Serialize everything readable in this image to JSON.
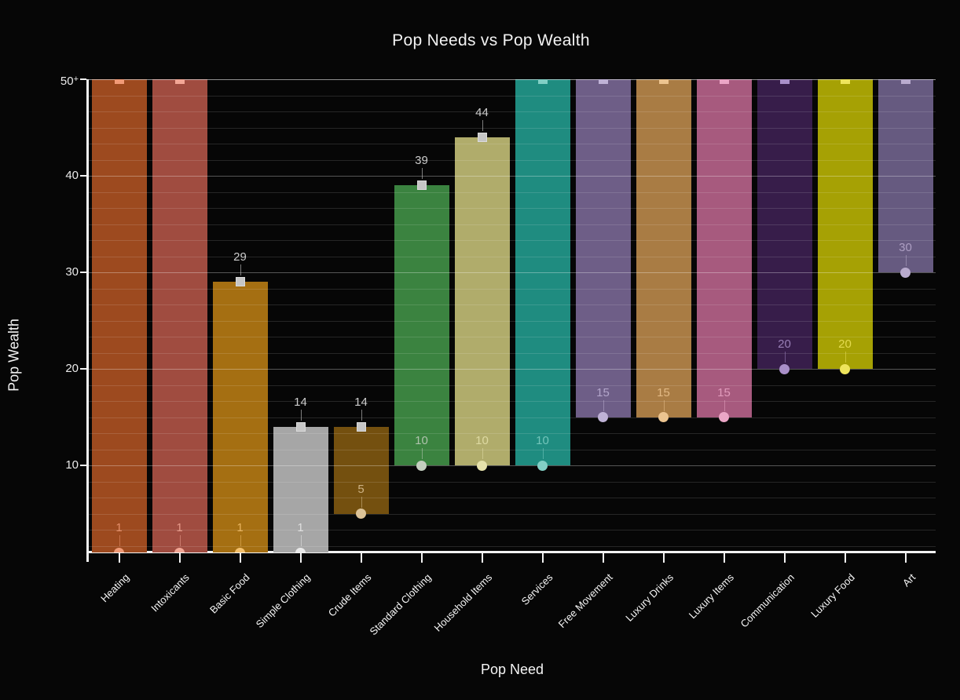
{
  "chart_data": {
    "type": "bar",
    "subtype": "floating-range-bar",
    "title": "Pop Needs vs Pop Wealth",
    "xlabel": "Pop Need",
    "ylabel": "Pop Wealth",
    "ylim": [
      1,
      50
    ],
    "grid": "on",
    "legend": "none",
    "y_major_ticks": [
      {
        "value": 10,
        "label": "10"
      },
      {
        "value": 20,
        "label": "20"
      },
      {
        "value": 30,
        "label": "30"
      },
      {
        "value": 40,
        "label": "40"
      },
      {
        "value": 50,
        "label": "50+"
      }
    ],
    "y_minor_divisions_per_major": 6,
    "categories": [
      "Heating",
      "Intoxicants",
      "Basic Food",
      "Simple Clothing",
      "Crude Items",
      "Standard Clothing",
      "Household Items",
      "Services",
      "Free Movement",
      "Luxury Drinks",
      "Luxury Items",
      "Communication",
      "Luxury Food",
      "Art"
    ],
    "series": [
      {
        "name": "Heating",
        "low": 1,
        "high": 50,
        "high_capped": true,
        "bar_color": "#9d4a1f",
        "tint_color": "#f09a76"
      },
      {
        "name": "Intoxicants",
        "low": 1,
        "high": 50,
        "high_capped": true,
        "bar_color": "#a04c40",
        "tint_color": "#f2a695"
      },
      {
        "name": "Basic Food",
        "low": 1,
        "high": 29,
        "high_capped": false,
        "bar_color": "#a56f12",
        "tint_color": "#f4c06c"
      },
      {
        "name": "Simple Clothing",
        "low": 1,
        "high": 14,
        "high_capped": false,
        "bar_color": "#a6a6a6",
        "tint_color": "#e9e9e9"
      },
      {
        "name": "Crude Items",
        "low": 5,
        "high": 14,
        "high_capped": false,
        "bar_color": "#74500f",
        "tint_color": "#dcc398"
      },
      {
        "name": "Standard Clothing",
        "low": 10,
        "high": 39,
        "high_capped": false,
        "bar_color": "#3b8340",
        "tint_color": "#c4cfc0"
      },
      {
        "name": "Household Items",
        "low": 10,
        "high": 44,
        "high_capped": false,
        "bar_color": "#b0ac6b",
        "tint_color": "#e6e2ab"
      },
      {
        "name": "Services",
        "low": 10,
        "high": 50,
        "high_capped": true,
        "bar_color": "#1f8c80",
        "tint_color": "#82cfc5"
      },
      {
        "name": "Free Movement",
        "low": 15,
        "high": 50,
        "high_capped": true,
        "bar_color": "#6e5e87",
        "tint_color": "#bfb2d6"
      },
      {
        "name": "Luxury Drinks",
        "low": 15,
        "high": 50,
        "high_capped": true,
        "bar_color": "#a97c44",
        "tint_color": "#ecc490"
      },
      {
        "name": "Luxury Items",
        "low": 15,
        "high": 50,
        "high_capped": true,
        "bar_color": "#a75a7e",
        "tint_color": "#eba6c6"
      },
      {
        "name": "Communication",
        "low": 20,
        "high": 50,
        "high_capped": true,
        "bar_color": "#371d4a",
        "tint_color": "#a98fc9"
      },
      {
        "name": "Luxury Food",
        "low": 20,
        "high": 50,
        "high_capped": true,
        "bar_color": "#a6a104",
        "tint_color": "#eee45c"
      },
      {
        "name": "Art",
        "low": 30,
        "high": 50,
        "high_capped": true,
        "bar_color": "#665a80",
        "tint_color": "#b9abce"
      }
    ],
    "colors": {
      "background": "#060606",
      "axis": "#f2f2f2",
      "high_marker_gray": "#c6c6c6",
      "high_label_gray": "#cccccc"
    }
  }
}
